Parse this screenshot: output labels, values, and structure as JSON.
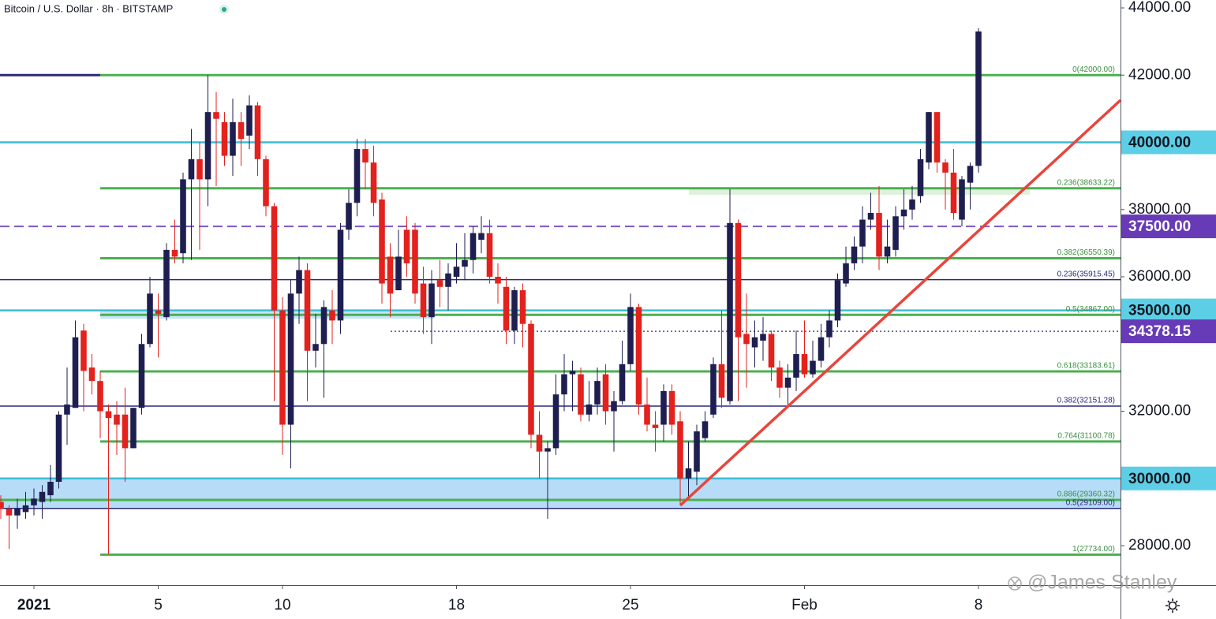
{
  "chart_data": {
    "type": "candlestick",
    "title": "Bitcoin / U.S. Dollar · 8h · BITSTAMP",
    "watermark": "@James Stanley",
    "up_color": "#1e1e50",
    "down_color": "#e3211d",
    "x": [
      -1.333,
      -1,
      -0.667,
      -0.333,
      0,
      0.333,
      0.667,
      1,
      1.333,
      1.667,
      2,
      2.333,
      2.667,
      3,
      3.333,
      3.667,
      4,
      4.333,
      4.667,
      5,
      5.333,
      5.667,
      6,
      6.333,
      6.667,
      7,
      7.333,
      7.667,
      8,
      8.333,
      8.667,
      9,
      9.333,
      9.667,
      10,
      10.333,
      10.667,
      11,
      11.333,
      11.667,
      12,
      12.333,
      12.667,
      13,
      13.333,
      13.667,
      14,
      14.333,
      14.667,
      15,
      15.333,
      15.667,
      16,
      16.333,
      16.667,
      17,
      17.333,
      17.667,
      18,
      18.333,
      18.667,
      19,
      19.333,
      19.667,
      20,
      20.333,
      20.667,
      21,
      21.333,
      21.667,
      22,
      22.333,
      22.667,
      23,
      23.333,
      23.667,
      24,
      24.333,
      24.667,
      25,
      25.333,
      25.667,
      26,
      26.333,
      26.667,
      27,
      27.333,
      27.667,
      28,
      28.333,
      28.667,
      29,
      29.333,
      29.667,
      30,
      30.333,
      30.667,
      31,
      31.333,
      31.667,
      32,
      32.333,
      32.667,
      33,
      33.333,
      33.667,
      34,
      34.333,
      34.667,
      35,
      35.333,
      35.667,
      36,
      36.333,
      36.667,
      37,
      37.333,
      37.667,
      38
    ],
    "open": [
      29300,
      29100,
      28900,
      29000,
      29200,
      29300,
      29500,
      29900,
      31900,
      32100,
      34400,
      33300,
      32900,
      32000,
      31900,
      31900,
      30900,
      32100,
      34000,
      35000,
      34800,
      36800,
      36700,
      38900,
      39500,
      38900,
      40900,
      40600,
      39600,
      40600,
      40200,
      41100,
      39500,
      38100,
      35000,
      31600,
      35500,
      36200,
      33800,
      34000,
      35000,
      34700,
      37400,
      38200,
      39800,
      39400,
      38300,
      36600,
      35600,
      37400,
      37400,
      35800,
      34800,
      35900,
      35700,
      36000,
      36300,
      36500,
      37100,
      37300,
      36000,
      35700,
      34400,
      35600,
      34600,
      31300,
      30800,
      30900,
      32500,
      33100,
      33100,
      31900,
      32200,
      33100,
      32000,
      32300,
      33400,
      35100,
      32200,
      31600,
      31600,
      32600,
      31700,
      30000,
      30200,
      31200,
      31900,
      33400,
      32300,
      37600,
      34300,
      33900,
      34100,
      34300,
      33300,
      32700,
      33000,
      33700,
      33100,
      33500,
      34200,
      34700,
      35800,
      36400,
      36900,
      37700,
      37900,
      36600,
      36800,
      37800,
      38000,
      38400,
      39400,
      40900,
      39400,
      39100,
      37700,
      38800,
      39300
    ],
    "high": [
      29500,
      29200,
      29400,
      29600,
      29700,
      29800,
      30400,
      32000,
      33300,
      34700,
      34600,
      33700,
      33200,
      32200,
      32300,
      32700,
      32100,
      34300,
      36000,
      35500,
      37000,
      37700,
      39100,
      40400,
      40000,
      42000,
      41500,
      40900,
      41300,
      40900,
      41400,
      41200,
      39600,
      38200,
      35400,
      35900,
      36600,
      36400,
      34900,
      35300,
      35600,
      37600,
      38600,
      40100,
      40100,
      39900,
      38500,
      37000,
      37400,
      37800,
      37600,
      36300,
      36200,
      36500,
      36400,
      37000,
      37300,
      37500,
      37800,
      37700,
      36400,
      36000,
      35700,
      35800,
      34700,
      32000,
      31100,
      33100,
      33700,
      33500,
      33300,
      32900,
      33300,
      33400,
      32600,
      34100,
      35500,
      35200,
      33000,
      32000,
      32800,
      32800,
      32000,
      31100,
      31600,
      32000,
      33600,
      35000,
      38600,
      37700,
      35500,
      34700,
      34800,
      34400,
      33500,
      33400,
      34400,
      34700,
      34100,
      34600,
      35000,
      36100,
      36900,
      37200,
      38100,
      38500,
      38700,
      37700,
      38100,
      38600,
      38700,
      39800,
      40900,
      40900,
      39500,
      39800,
      39000,
      39400,
      43400
    ],
    "low": [
      28800,
      27900,
      28500,
      28800,
      28900,
      28800,
      29300,
      29700,
      31000,
      32100,
      32000,
      32500,
      31200,
      27740,
      30700,
      29900,
      30900,
      31900,
      33900,
      33600,
      34700,
      36400,
      36400,
      36500,
      36800,
      38100,
      38700,
      39300,
      39000,
      39300,
      39800,
      39000,
      37800,
      32300,
      30700,
      30300,
      34600,
      32300,
      33300,
      32400,
      34000,
      34300,
      37100,
      37800,
      38600,
      37800,
      35200,
      34800,
      35600,
      36000,
      35200,
      34300,
      34000,
      35100,
      35000,
      35800,
      35900,
      36100,
      36700,
      35800,
      35200,
      34000,
      34000,
      33900,
      30900,
      30000,
      28800,
      30700,
      32000,
      32000,
      31700,
      31700,
      31900,
      31600,
      30800,
      32200,
      33200,
      31900,
      31400,
      30800,
      31100,
      31300,
      29200,
      29400,
      29800,
      31100,
      31800,
      32100,
      32200,
      32300,
      32700,
      33300,
      33500,
      32900,
      32400,
      32100,
      32600,
      33000,
      33000,
      33300,
      33900,
      34500,
      35700,
      36200,
      36400,
      37400,
      36200,
      36400,
      36600,
      37400,
      37700,
      38200,
      39200,
      39100,
      38000,
      37700,
      37500,
      38000,
      39100
    ],
    "close": [
      29100,
      28900,
      29100,
      29200,
      29400,
      29600,
      29900,
      31900,
      32200,
      34200,
      33200,
      32900,
      32000,
      31800,
      31600,
      30900,
      32100,
      34000,
      35500,
      34900,
      36800,
      36600,
      38900,
      39500,
      38900,
      40900,
      40700,
      39600,
      40600,
      40100,
      41100,
      39500,
      38100,
      35000,
      31600,
      35500,
      36200,
      33800,
      34000,
      35100,
      34700,
      37400,
      38200,
      39800,
      39400,
      38200,
      35800,
      35500,
      36600,
      36400,
      35500,
      34800,
      35800,
      35700,
      36100,
      36300,
      36500,
      37300,
      37300,
      36000,
      35800,
      34400,
      35600,
      34600,
      31300,
      30800,
      30900,
      32500,
      33100,
      33200,
      31900,
      32200,
      32900,
      32000,
      32300,
      33400,
      35100,
      32200,
      31600,
      31500,
      32600,
      31600,
      30000,
      30300,
      31400,
      31700,
      33400,
      32400,
      37600,
      34200,
      34000,
      34200,
      34300,
      33300,
      32700,
      33000,
      33700,
      33100,
      33500,
      34200,
      34700,
      35900,
      36400,
      36900,
      37700,
      37900,
      36600,
      36900,
      37800,
      38000,
      38300,
      39500,
      40900,
      39400,
      39100,
      37900,
      38900,
      39300,
      43300
    ],
    "xlim": [
      -1.365,
      43.714
    ],
    "xticks": [
      {
        "value": 0,
        "label": "2021"
      },
      5,
      10,
      {
        "value": 17,
        "label": "18"
      },
      {
        "value": 24,
        "label": "25"
      },
      {
        "value": 31,
        "label": "Feb"
      },
      {
        "value": 38,
        "label": "8"
      }
    ],
    "ylim": [
      26827,
      44235
    ],
    "yticks": [
      {
        "value": 44000,
        "label": "44000.00"
      },
      {
        "value": 42000,
        "label": "42000.00"
      },
      {
        "value": 38000,
        "label": "38000.00"
      },
      {
        "value": 36000,
        "label": "36000.00"
      },
      {
        "value": 32000,
        "label": "32000.00"
      },
      {
        "value": 28000,
        "label": "28000.00"
      }
    ],
    "zones": [
      {
        "x": [
          -1.365,
          43.714
        ],
        "y": [
          30000,
          29109
        ],
        "color": "#9fd0f5"
      },
      {
        "x": [
          2.667,
          16.1
        ],
        "y": [
          35000,
          34750
        ],
        "color": "#b3dcf5"
      },
      {
        "x": [
          26.35,
          40.06
        ],
        "y": [
          38633.22,
          38440
        ],
        "color": "#d3ecd0"
      }
    ],
    "levels": [
      {
        "value": 42000,
        "color": "#2b2b78",
        "style": "solid",
        "x": [
          -1.365,
          2.667
        ]
      },
      {
        "value": 42000,
        "color": "#4caf50",
        "style": "solid",
        "x": [
          2.667,
          43.714
        ],
        "label": "0(42000.00)"
      },
      {
        "value": 40000,
        "color": "#3dbcd6",
        "style": "solid",
        "x": [
          -1.365,
          43.714
        ]
      },
      {
        "value": 38633.22,
        "color": "#4caf50",
        "style": "solid",
        "x": [
          2.667,
          43.714
        ],
        "label": "0.236(38633.22)"
      },
      {
        "value": 37500,
        "color": "#7e57c2",
        "style": "dashed",
        "x": [
          -1.365,
          43.714
        ]
      },
      {
        "value": 36550.39,
        "color": "#4caf50",
        "style": "solid",
        "x": [
          2.667,
          43.714
        ],
        "label": "0.382(36550.39)"
      },
      {
        "value": 35915.45,
        "color": "#2b2b78",
        "style": "thin",
        "x": [
          -1.365,
          43.714
        ],
        "label": "0.236(35915.45)"
      },
      {
        "value": 35000,
        "color": "#3dbcd6",
        "style": "solid",
        "x": [
          -1.365,
          43.714
        ]
      },
      {
        "value": 34867,
        "color": "#4caf50",
        "style": "solid",
        "x": [
          2.667,
          43.714
        ],
        "label": "0.5(34867.00)"
      },
      {
        "value": 34378.15,
        "color": "#2b2b78",
        "style": "dotted",
        "x": [
          14.35,
          43.714
        ]
      },
      {
        "value": 33183.61,
        "color": "#4caf50",
        "style": "solid",
        "x": [
          2.667,
          43.714
        ],
        "label": "0.618(33183.61)"
      },
      {
        "value": 32151.28,
        "color": "#2b2b78",
        "style": "thin",
        "x": [
          -1.365,
          43.714
        ],
        "label": "0.382(32151.28)"
      },
      {
        "value": 31100.78,
        "color": "#4caf50",
        "style": "solid",
        "x": [
          2.667,
          43.714
        ],
        "label": "0.764(31100.78)"
      },
      {
        "value": 30000,
        "color": "#3dbcd6",
        "style": "solid",
        "x": [
          -1.365,
          43.714
        ]
      },
      {
        "value": 29360.32,
        "color": "#4caf50",
        "style": "solid",
        "x": [
          -1.365,
          43.714
        ],
        "label": "0.886(29360.32)"
      },
      {
        "value": 29109,
        "color": "#2b2b78",
        "style": "thin",
        "x": [
          -1.365,
          43.714
        ],
        "label": "0.5(29109.00)"
      },
      {
        "value": 27734,
        "color": "#4caf50",
        "style": "solid",
        "x": [
          2.667,
          43.714
        ],
        "label": "1(27734.00)"
      }
    ],
    "trendline": {
      "x": [
        26.0,
        43.714
      ],
      "y": [
        29196,
        41255
      ],
      "color": "#e8453c"
    },
    "price_labels": [
      {
        "value": 40000,
        "label": "40000.00",
        "color": "#5ccfe6",
        "text_color": "#131722"
      },
      {
        "value": 37500,
        "label": "37500.00",
        "color": "#673ab7",
        "text_color": "#ffffff"
      },
      {
        "value": 35000,
        "label": "35000.00",
        "color": "#5ccfe6",
        "text_color": "#131722"
      },
      {
        "value": 34378.15,
        "label": "34378.15",
        "color": "#673ab7",
        "text_color": "#ffffff"
      },
      {
        "value": 30000,
        "label": "30000.00",
        "color": "#5ccfe6",
        "text_color": "#131722"
      }
    ]
  }
}
